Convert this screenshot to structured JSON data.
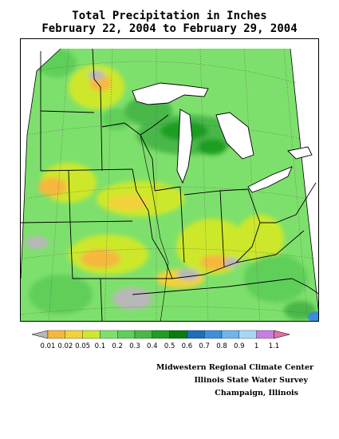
{
  "title": {
    "line1": "Total Precipitation in Inches",
    "line2": "February 22, 2004 to February 29, 2004"
  },
  "legend": {
    "labels": [
      "0.01",
      "0.02",
      "0.05",
      "0.1",
      "0.2",
      "0.3",
      "0.4",
      "0.5",
      "0.6",
      "0.7",
      "0.8",
      "0.9",
      "1",
      "1.1"
    ],
    "colors": [
      "#b8b8b8",
      "#f5b83c",
      "#f2d23a",
      "#cde82c",
      "#7ee06c",
      "#5fcf5a",
      "#48b848",
      "#1f9e22",
      "#0b7a12",
      "#1c6fb8",
      "#3d8fd8",
      "#6fb4ec",
      "#a9d6f5",
      "#c77ee3",
      "#e36fa5"
    ]
  },
  "credits": {
    "line1": "Midwestern Regional Climate Center",
    "line2": "Illinois State Water Survey",
    "line3": "Champaign, Illinois"
  }
}
